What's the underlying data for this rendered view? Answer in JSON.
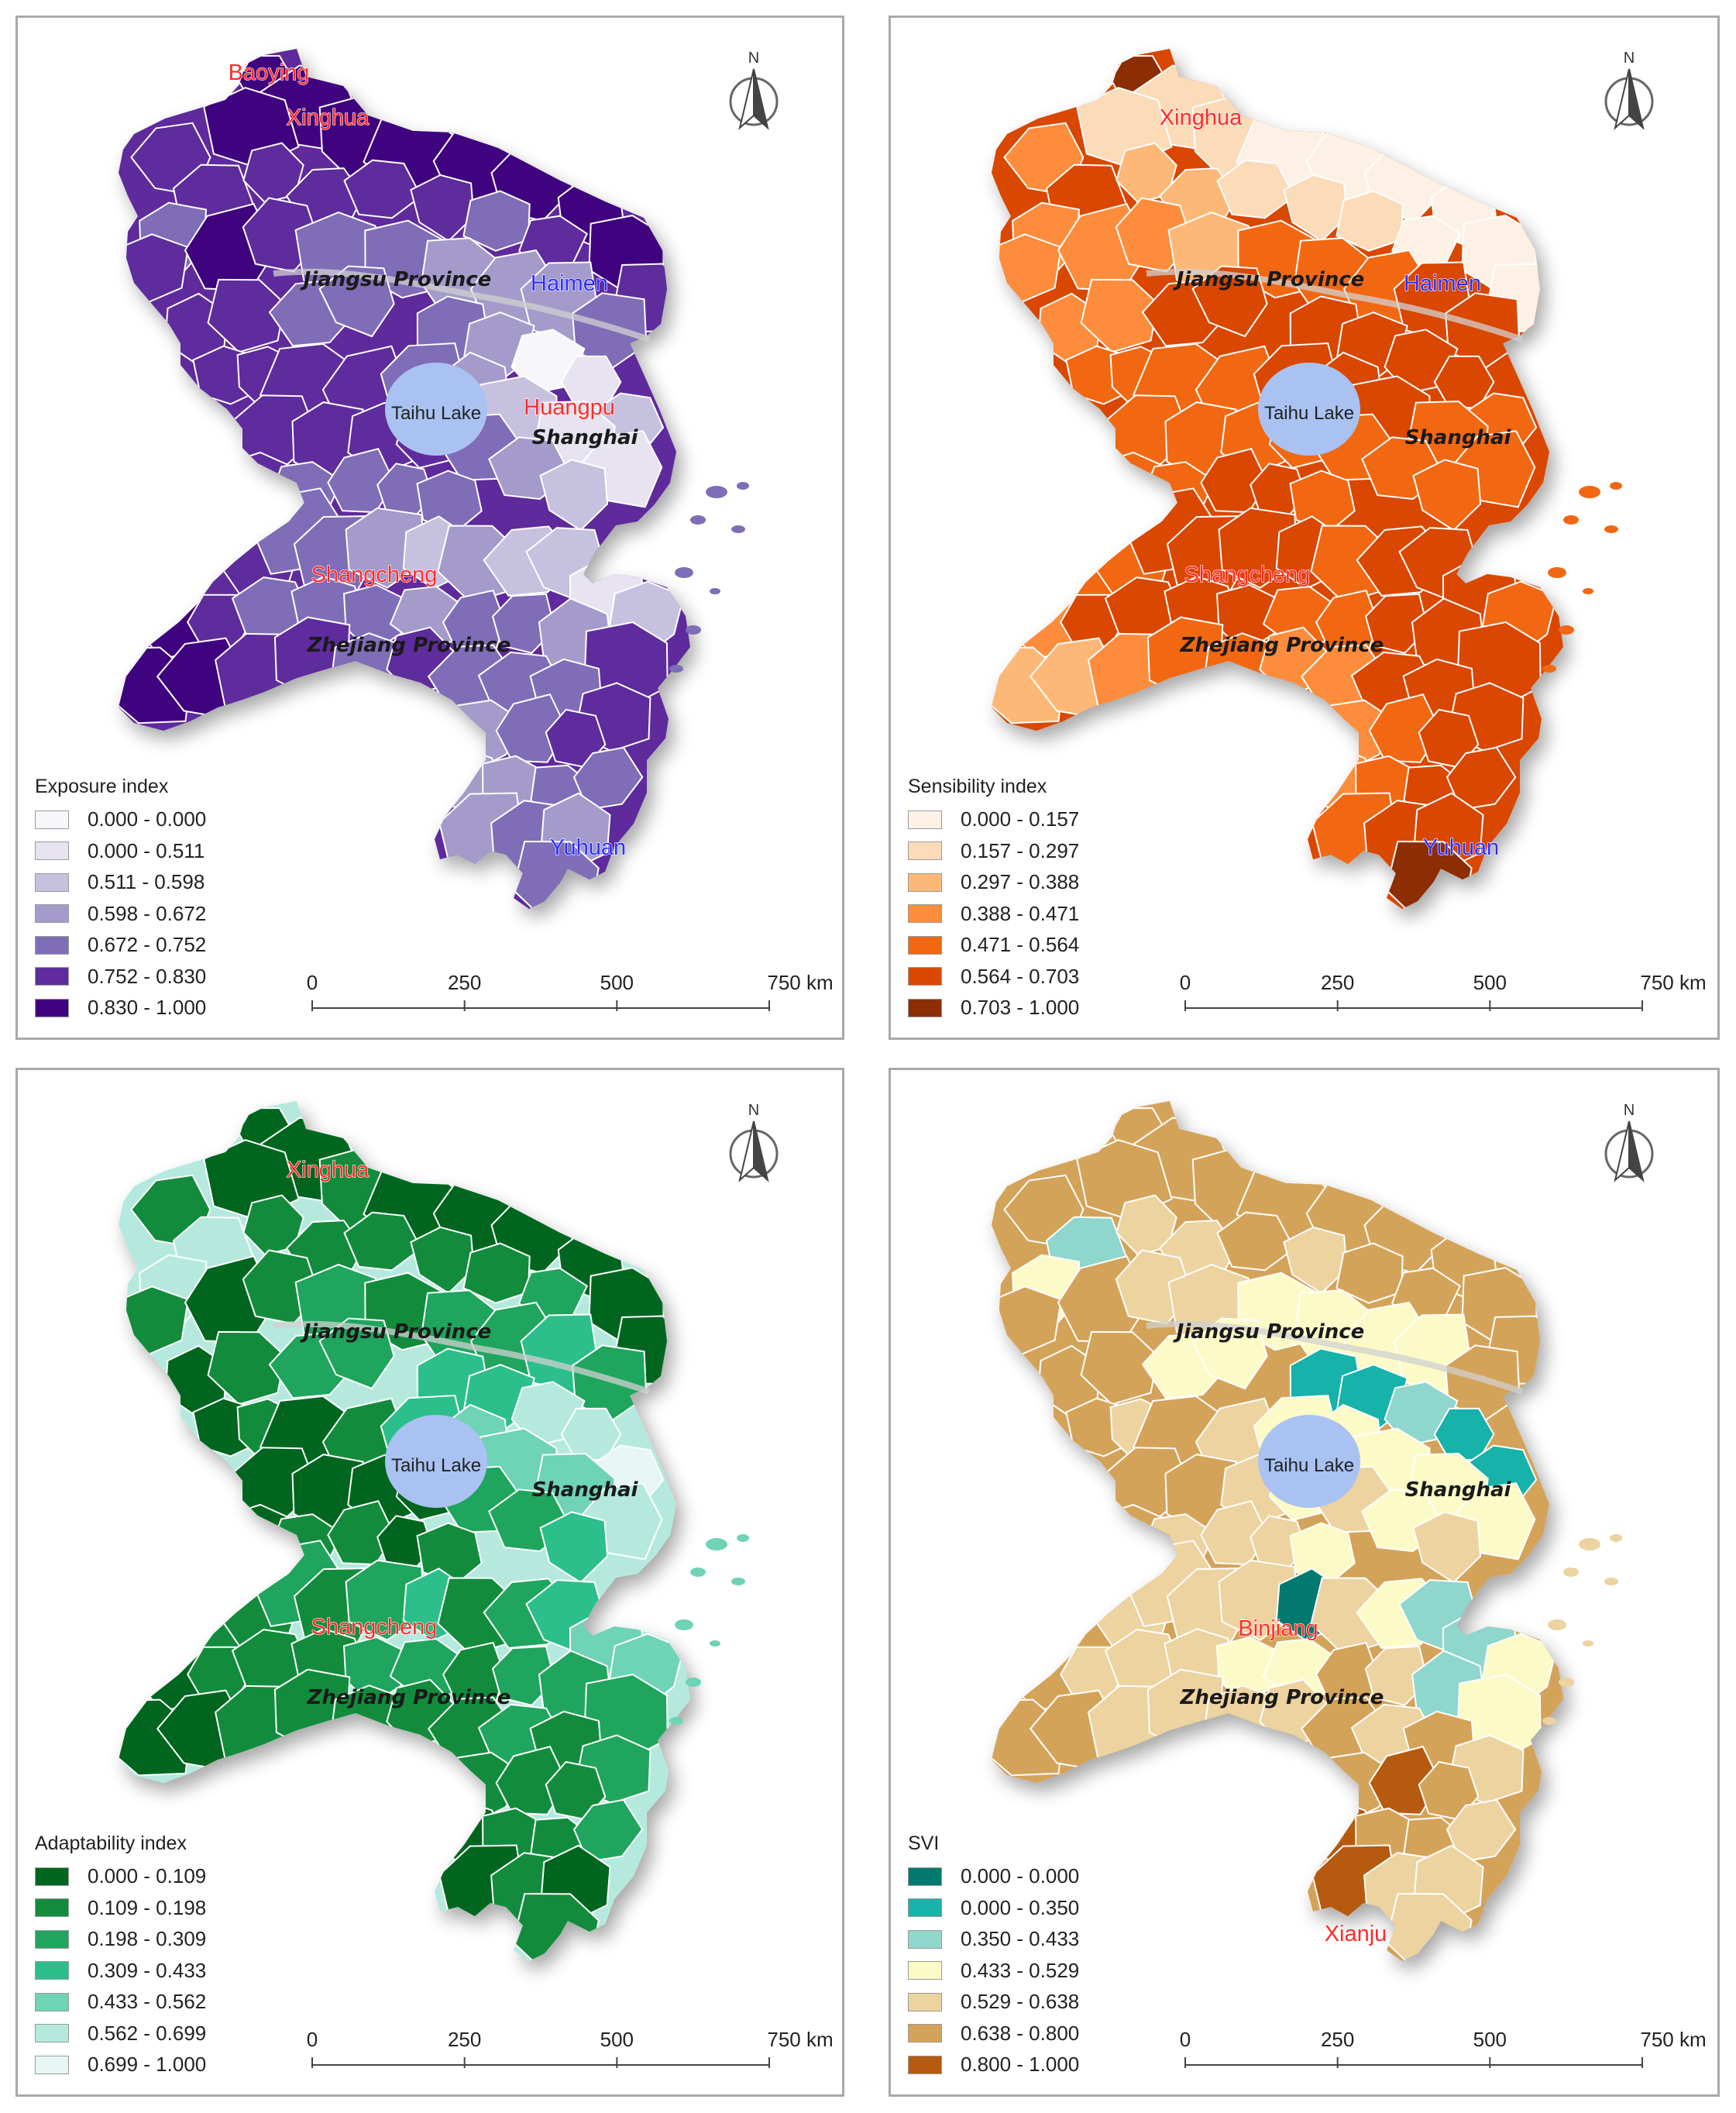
{
  "panels": [
    {
      "id": "exposure",
      "legend_title": "Exposure index",
      "palette": [
        "#f7f6fa",
        "#e7e3f1",
        "#c7c1e0",
        "#a49bcb",
        "#7f6db7",
        "#5e2c9c",
        "#40037f"
      ],
      "classes": [
        "0.000 - 0.000",
        "0.000 - 0.511",
        "0.511 - 0.598",
        "0.598 - 0.672",
        "0.672 - 0.752",
        "0.752 - 0.830",
        "0.830 - 1.000"
      ],
      "labels": {
        "a": "Baoying",
        "b": "Xinghua",
        "c": "Haimen",
        "d": "Huangpu",
        "e": "Shangcheng",
        "f": "Yuhuan"
      },
      "provinces": {
        "jiangsu": "Jiangsu Province",
        "zhejiang": "Zhejiang Province",
        "shanghai": "Shanghai"
      },
      "lake": "Taihu Lake",
      "north": "N",
      "scale": [
        "0",
        "250",
        "500",
        "750 km"
      ]
    },
    {
      "id": "sensibility",
      "legend_title": "Sensibility index",
      "palette": [
        "#fdf1e5",
        "#fcdbb9",
        "#fdb878",
        "#fd8d3c",
        "#f26812",
        "#d94701",
        "#8c2d04"
      ],
      "classes": [
        "0.000 - 0.157",
        "0.157 - 0.297",
        "0.297 - 0.388",
        "0.388 - 0.471",
        "0.471 - 0.564",
        "0.564 - 0.703",
        "0.703 - 1.000"
      ],
      "labels": {
        "b": "Xinghua",
        "c": "Haimen",
        "e": "Shangcheng",
        "f": "Yuhuan"
      },
      "provinces": {
        "jiangsu": "Jiangsu Province",
        "zhejiang": "Zhejiang Province",
        "shanghai": "Shanghai"
      },
      "lake": "Taihu Lake",
      "north": "N",
      "scale": [
        "0",
        "250",
        "500",
        "750 km"
      ]
    },
    {
      "id": "adaptability",
      "legend_title": "Adaptability index",
      "palette": [
        "#00661f",
        "#128c3c",
        "#1fa55d",
        "#2cbf8b",
        "#6fd3b6",
        "#b5e9de",
        "#e5f6f5"
      ],
      "classes": [
        "0.000 - 0.109",
        "0.109 - 0.198",
        "0.198 - 0.309",
        "0.309 - 0.433",
        "0.433 - 0.562",
        "0.562 - 0.699",
        "0.699 - 1.000"
      ],
      "labels": {
        "b": "Xinghua",
        "e": "Shangcheng"
      },
      "provinces": {
        "jiangsu": "Jiangsu Province",
        "zhejiang": "Zhejiang Province",
        "shanghai": "Shanghai"
      },
      "lake": "Taihu Lake",
      "north": "N",
      "scale": [
        "0",
        "250",
        "500",
        "750 km"
      ]
    },
    {
      "id": "svi",
      "legend_title": "SVI",
      "palette": [
        "#01796f",
        "#17b2a9",
        "#8fd6cc",
        "#fcfbc8",
        "#ecd3a0",
        "#d4a35a",
        "#b65a10"
      ],
      "classes": [
        "0.000 - 0.000",
        "0.000 - 0.350",
        "0.350 - 0.433",
        "0.433 - 0.529",
        "0.529 - 0.638",
        "0.638 - 0.800",
        "0.800 - 1.000"
      ],
      "labels": {
        "g": "Binjiang",
        "h": "Xianju"
      },
      "provinces": {
        "jiangsu": "Jiangsu Province",
        "zhejiang": "Zhejiang Province",
        "shanghai": "Shanghai"
      },
      "lake": "Taihu Lake",
      "north": "N",
      "scale": [
        "0",
        "250",
        "500",
        "750 km"
      ]
    }
  ],
  "colors": {
    "red_label": "#ff2a2a",
    "blue_label": "#2b2bff",
    "lake": "#a9c2f2",
    "border": "#ffffff"
  }
}
